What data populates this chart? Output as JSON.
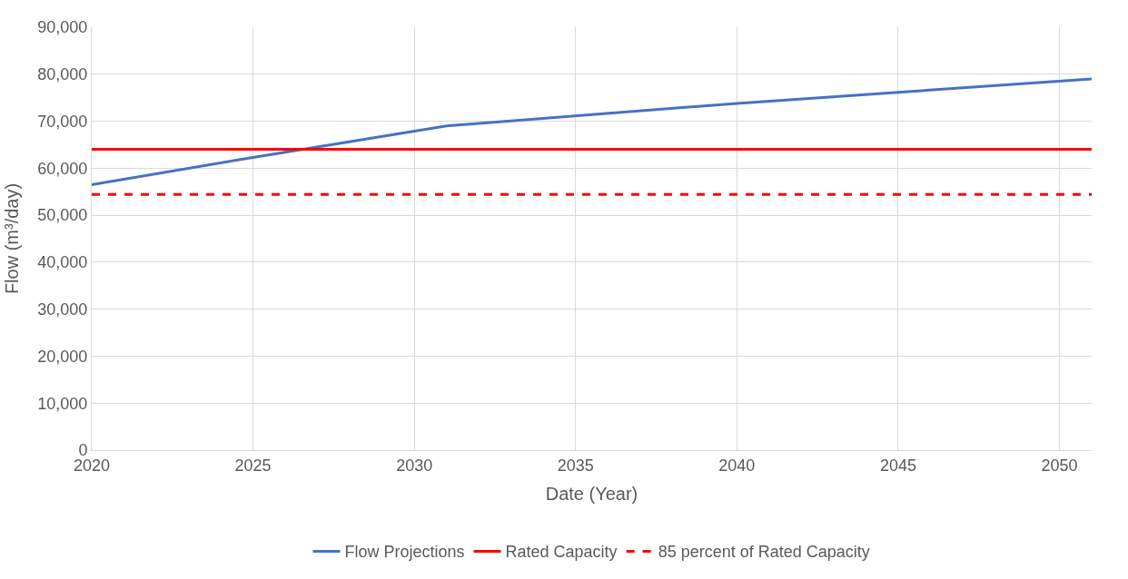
{
  "chart_data": {
    "type": "line",
    "xlabel": "Date (Year)",
    "ylabel": "Flow (m³/day)",
    "xlim": [
      2020,
      2051
    ],
    "xticks": [
      2020,
      2025,
      2030,
      2035,
      2040,
      2045,
      2050
    ],
    "ylim": [
      0,
      90000
    ],
    "yticks": [
      {
        "value": 0,
        "label": "0"
      },
      {
        "value": 10000,
        "label": "10,000"
      },
      {
        "value": 20000,
        "label": "20,000"
      },
      {
        "value": 30000,
        "label": "30,000"
      },
      {
        "value": 40000,
        "label": "40,000"
      },
      {
        "value": 50000,
        "label": "50,000"
      },
      {
        "value": 60000,
        "label": "60,000"
      },
      {
        "value": 70000,
        "label": "70,000"
      },
      {
        "value": 80000,
        "label": "80,000"
      },
      {
        "value": 90000,
        "label": "90,000"
      }
    ],
    "grid": true,
    "legend": "bottom",
    "marker": "none",
    "series": [
      {
        "name": "Flow Projections",
        "color": "#4472c4",
        "line_style": "solid",
        "x": [
          2020,
          2025,
          2031,
          2040,
          2051
        ],
        "values": [
          56500,
          62300,
          69000,
          73800,
          79000
        ]
      },
      {
        "name": "Rated Capacity",
        "color": "#ff0000",
        "line_style": "solid",
        "x": [
          2020,
          2051
        ],
        "values": [
          64000,
          64000
        ]
      },
      {
        "name": "85 percent of Rated Capacity",
        "color": "#ff0000",
        "line_style": "dashed",
        "x": [
          2020,
          2051
        ],
        "values": [
          54400,
          54400
        ]
      }
    ]
  }
}
